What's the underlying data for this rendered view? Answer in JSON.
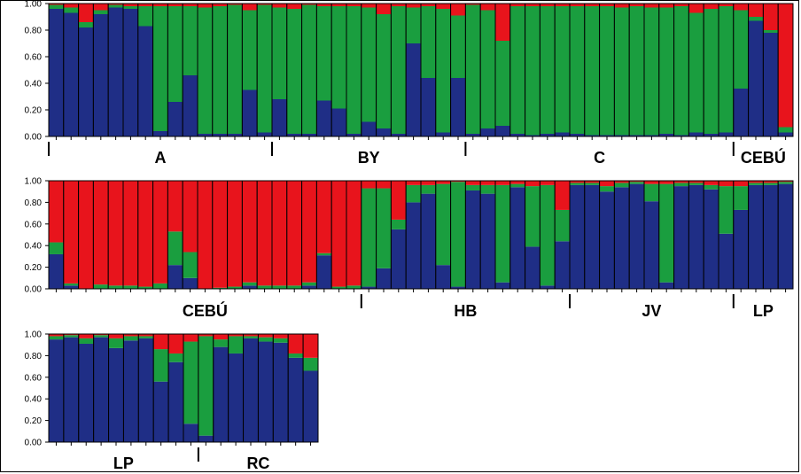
{
  "colors": {
    "blue": "#1f2e86",
    "green": "#1a9e3f",
    "red": "#e8141c",
    "outline": "#000000"
  },
  "chart_data": [
    {
      "type": "bar",
      "stacked": true,
      "ylim": [
        0,
        1
      ],
      "yticks": [
        "0.00",
        "0.20",
        "0.40",
        "0.60",
        "0.80",
        "1.00"
      ],
      "series_order": [
        "blue",
        "green",
        "red"
      ],
      "values": [
        [
          0.96,
          0.03,
          0.01
        ],
        [
          0.93,
          0.04,
          0.03
        ],
        [
          0.82,
          0.04,
          0.14
        ],
        [
          0.92,
          0.03,
          0.05
        ],
        [
          0.97,
          0.02,
          0.01
        ],
        [
          0.96,
          0.02,
          0.02
        ],
        [
          0.83,
          0.15,
          0.02
        ],
        [
          0.04,
          0.94,
          0.02
        ],
        [
          0.26,
          0.72,
          0.02
        ],
        [
          0.46,
          0.52,
          0.02
        ],
        [
          0.02,
          0.95,
          0.03
        ],
        [
          0.02,
          0.96,
          0.02
        ],
        [
          0.02,
          0.97,
          0.01
        ],
        [
          0.35,
          0.6,
          0.05
        ],
        [
          0.03,
          0.96,
          0.01
        ],
        [
          0.28,
          0.69,
          0.03
        ],
        [
          0.02,
          0.94,
          0.04
        ],
        [
          0.02,
          0.97,
          0.01
        ],
        [
          0.27,
          0.71,
          0.02
        ],
        [
          0.21,
          0.77,
          0.02
        ],
        [
          0.02,
          0.96,
          0.02
        ],
        [
          0.11,
          0.86,
          0.03
        ],
        [
          0.06,
          0.86,
          0.08
        ],
        [
          0.02,
          0.96,
          0.02
        ],
        [
          0.7,
          0.27,
          0.03
        ],
        [
          0.44,
          0.54,
          0.02
        ],
        [
          0.03,
          0.93,
          0.04
        ],
        [
          0.44,
          0.47,
          0.09
        ],
        [
          0.02,
          0.97,
          0.01
        ],
        [
          0.06,
          0.89,
          0.05
        ],
        [
          0.08,
          0.64,
          0.28
        ],
        [
          0.02,
          0.96,
          0.02
        ],
        [
          0.01,
          0.97,
          0.02
        ],
        [
          0.02,
          0.96,
          0.02
        ],
        [
          0.03,
          0.95,
          0.02
        ],
        [
          0.02,
          0.96,
          0.02
        ],
        [
          0.01,
          0.97,
          0.02
        ],
        [
          0.01,
          0.97,
          0.02
        ],
        [
          0.01,
          0.96,
          0.03
        ],
        [
          0.01,
          0.97,
          0.02
        ],
        [
          0.01,
          0.96,
          0.03
        ],
        [
          0.02,
          0.95,
          0.03
        ],
        [
          0.01,
          0.97,
          0.02
        ],
        [
          0.03,
          0.9,
          0.07
        ],
        [
          0.02,
          0.94,
          0.04
        ],
        [
          0.03,
          0.95,
          0.02
        ],
        [
          0.36,
          0.59,
          0.05
        ],
        [
          0.87,
          0.03,
          0.1
        ],
        [
          0.78,
          0.02,
          0.2
        ],
        [
          0.03,
          0.04,
          0.93
        ]
      ],
      "groups": [
        {
          "label": "A",
          "start": 0,
          "end": 15
        },
        {
          "label": "BY",
          "start": 15,
          "end": 28
        },
        {
          "label": "C",
          "start": 28,
          "end": 46
        },
        {
          "label": "CEBÚ",
          "start": 46,
          "end": 50
        }
      ]
    },
    {
      "type": "bar",
      "stacked": true,
      "ylim": [
        0,
        1
      ],
      "yticks": [
        "0.00",
        "0.20",
        "0.40",
        "0.60",
        "0.80",
        "1.00"
      ],
      "series_order": [
        "blue",
        "green",
        "red"
      ],
      "values": [
        [
          0.32,
          0.11,
          0.57
        ],
        [
          0.03,
          0.02,
          0.95
        ],
        [
          0.0,
          0.0,
          1.0
        ],
        [
          0.0,
          0.04,
          0.96
        ],
        [
          0.0,
          0.03,
          0.97
        ],
        [
          0.0,
          0.03,
          0.97
        ],
        [
          0.0,
          0.02,
          0.98
        ],
        [
          0.0,
          0.05,
          0.95
        ],
        [
          0.22,
          0.31,
          0.47
        ],
        [
          0.1,
          0.24,
          0.66
        ],
        [
          0.0,
          0.0,
          1.0
        ],
        [
          0.0,
          0.01,
          0.99
        ],
        [
          0.0,
          0.02,
          0.98
        ],
        [
          0.03,
          0.03,
          0.94
        ],
        [
          0.0,
          0.03,
          0.97
        ],
        [
          0.0,
          0.03,
          0.97
        ],
        [
          0.0,
          0.03,
          0.97
        ],
        [
          0.03,
          0.03,
          0.94
        ],
        [
          0.31,
          0.02,
          0.67
        ],
        [
          0.0,
          0.02,
          0.98
        ],
        [
          0.0,
          0.03,
          0.97
        ],
        [
          0.02,
          0.91,
          0.07
        ],
        [
          0.19,
          0.74,
          0.07
        ],
        [
          0.55,
          0.09,
          0.36
        ],
        [
          0.8,
          0.16,
          0.04
        ],
        [
          0.88,
          0.08,
          0.04
        ],
        [
          0.22,
          0.75,
          0.03
        ],
        [
          0.02,
          0.97,
          0.01
        ],
        [
          0.91,
          0.05,
          0.04
        ],
        [
          0.88,
          0.08,
          0.04
        ],
        [
          0.06,
          0.9,
          0.04
        ],
        [
          0.94,
          0.03,
          0.03
        ],
        [
          0.39,
          0.56,
          0.05
        ],
        [
          0.03,
          0.93,
          0.04
        ],
        [
          0.44,
          0.29,
          0.27
        ],
        [
          0.96,
          0.02,
          0.02
        ],
        [
          0.96,
          0.02,
          0.02
        ],
        [
          0.9,
          0.05,
          0.05
        ],
        [
          0.94,
          0.04,
          0.02
        ],
        [
          0.97,
          0.02,
          0.01
        ],
        [
          0.81,
          0.16,
          0.03
        ],
        [
          0.06,
          0.91,
          0.03
        ],
        [
          0.95,
          0.03,
          0.02
        ],
        [
          0.96,
          0.02,
          0.02
        ],
        [
          0.92,
          0.04,
          0.04
        ],
        [
          0.51,
          0.44,
          0.05
        ],
        [
          0.73,
          0.22,
          0.05
        ],
        [
          0.96,
          0.02,
          0.02
        ],
        [
          0.96,
          0.02,
          0.02
        ],
        [
          0.97,
          0.02,
          0.01
        ]
      ],
      "groups": [
        {
          "label": "CEBÚ",
          "start": 0,
          "end": 21
        },
        {
          "label": "HB",
          "start": 21,
          "end": 35
        },
        {
          "label": "JV",
          "start": 35,
          "end": 46
        },
        {
          "label": "LP",
          "start": 46,
          "end": 50
        }
      ]
    },
    {
      "type": "bar",
      "stacked": true,
      "ylim": [
        0,
        1
      ],
      "yticks": [
        "0.00",
        "0.20",
        "0.40",
        "0.60",
        "0.80",
        "1.00"
      ],
      "series_order": [
        "blue",
        "green",
        "red"
      ],
      "values": [
        [
          0.95,
          0.03,
          0.02
        ],
        [
          0.97,
          0.02,
          0.01
        ],
        [
          0.91,
          0.05,
          0.04
        ],
        [
          0.97,
          0.02,
          0.01
        ],
        [
          0.87,
          0.09,
          0.04
        ],
        [
          0.94,
          0.04,
          0.02
        ],
        [
          0.96,
          0.02,
          0.02
        ],
        [
          0.56,
          0.3,
          0.14
        ],
        [
          0.74,
          0.08,
          0.18
        ],
        [
          0.17,
          0.76,
          0.07
        ],
        [
          0.06,
          0.92,
          0.02
        ],
        [
          0.88,
          0.07,
          0.05
        ],
        [
          0.82,
          0.16,
          0.02
        ],
        [
          0.96,
          0.02,
          0.02
        ],
        [
          0.93,
          0.04,
          0.03
        ],
        [
          0.92,
          0.04,
          0.04
        ],
        [
          0.78,
          0.04,
          0.18
        ],
        [
          0.66,
          0.12,
          0.22
        ]
      ],
      "groups": [
        {
          "label": "LP",
          "start": 0,
          "end": 10
        },
        {
          "label": "RC",
          "start": 10,
          "end": 18
        }
      ]
    }
  ]
}
